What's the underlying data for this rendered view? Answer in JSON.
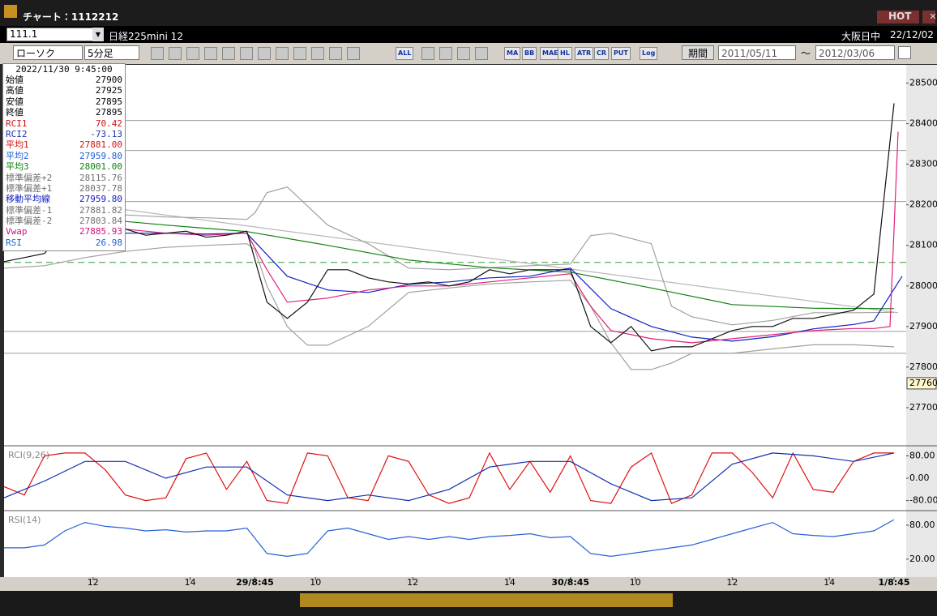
{
  "window": {
    "title": "チャート：1112212",
    "hot": "HOT"
  },
  "toolbar": {
    "code": "111.1",
    "name": "日経225mini 12",
    "market": "大阪日中",
    "date": "22/12/02",
    "style": "ローソク",
    "interval": "5分足",
    "period": "期間",
    "from": "2011/05/11",
    "tilde": "～",
    "to": "2012/03/06",
    "buttons": [
      "ALL",
      "MA",
      "BB",
      "MAE",
      "HL",
      "ATR",
      "CR",
      "PUT",
      "Log"
    ]
  },
  "info_panel": {
    "datetime": "2022/11/30 9:45:00",
    "rows": [
      {
        "label": "始値",
        "value": "27900",
        "color": "#000000"
      },
      {
        "label": "高値",
        "value": "27925",
        "color": "#000000"
      },
      {
        "label": "安値",
        "value": "27895",
        "color": "#000000"
      },
      {
        "label": "終値",
        "value": "27895",
        "color": "#000000"
      },
      {
        "label": "RCI1",
        "value": "70.42",
        "color": "#d01010"
      },
      {
        "label": "RCI2",
        "value": "-73.13",
        "color": "#2030b0"
      },
      {
        "label": "平均1",
        "value": "27881.00",
        "color": "#d01010"
      },
      {
        "label": "平均2",
        "value": "27959.80",
        "color": "#2060d0"
      },
      {
        "label": "平均3",
        "value": "28001.00",
        "color": "#108010"
      },
      {
        "label": "標準偏差+2",
        "value": "28115.76",
        "color": "#707070"
      },
      {
        "label": "標準偏差+1",
        "value": "28037.78",
        "color": "#707070"
      },
      {
        "label": "移動平均線",
        "value": "27959.80",
        "color": "#1020c0"
      },
      {
        "label": "標準偏差-1",
        "value": "27881.82",
        "color": "#707070"
      },
      {
        "label": "標準偏差-2",
        "value": "27803.84",
        "color": "#707070"
      },
      {
        "label": "Vwap",
        "value": "27885.93",
        "color": "#d01080"
      },
      {
        "label": "RSI",
        "value": "26.98",
        "color": "#2060d0"
      }
    ]
  },
  "chart_data": [
    {
      "type": "line",
      "xlim": [
        0,
        223
      ],
      "ylim": [
        27610,
        28535
      ],
      "yticks": [
        27700,
        27800,
        27900,
        28000,
        28100,
        28200,
        28300,
        28400,
        28500
      ],
      "xticks": [
        {
          "value": 22,
          "label": "12"
        },
        {
          "value": 46,
          "label": "14"
        },
        {
          "value": 62,
          "label": "29/8:45"
        },
        {
          "value": 77,
          "label": "10"
        },
        {
          "value": 101,
          "label": "12"
        },
        {
          "value": 125,
          "label": "14"
        },
        {
          "value": 140,
          "label": "30/8:45"
        },
        {
          "value": 156,
          "label": "10"
        },
        {
          "value": 180,
          "label": "12"
        },
        {
          "value": 204,
          "label": "14"
        },
        {
          "value": 220,
          "label": "1/8:45"
        }
      ],
      "last_price": 27760,
      "hlines": [
        28408,
        28334,
        28208,
        27888,
        27834
      ],
      "hline_color": "#9a9a9a",
      "dashed_line": 28058,
      "dashed_color": "#30a030",
      "trendline": {
        "x": [
          0,
          221
        ],
        "values": [
          28228,
          27934
        ],
        "color": "#b8b8b8"
      },
      "series": [
        {
          "color": "#a0a0a0",
          "x": [
            0,
            10,
            20,
            30,
            40,
            50,
            60,
            62,
            65,
            70,
            80,
            90,
            100,
            110,
            120,
            130,
            140,
            145,
            150,
            160,
            165,
            170,
            180,
            190,
            200,
            210,
            220
          ],
          "values": [
            28194,
            28190,
            28180,
            28175,
            28170,
            28168,
            28164,
            28180,
            28230,
            28244,
            28150,
            28104,
            28044,
            28040,
            28045,
            28050,
            28054,
            28124,
            28130,
            28104,
            27950,
            27924,
            27904,
            27915,
            27934,
            27934,
            27935
          ]
        },
        {
          "color": "#a0a0a0",
          "x": [
            0,
            10,
            20,
            30,
            40,
            50,
            60,
            62,
            65,
            70,
            75,
            80,
            90,
            100,
            110,
            120,
            130,
            140,
            145,
            150,
            155,
            160,
            165,
            170,
            180,
            190,
            200,
            210,
            220
          ],
          "values": [
            28044,
            28050,
            28070,
            28085,
            28095,
            28100,
            28104,
            28090,
            28000,
            27900,
            27854,
            27854,
            27900,
            27984,
            27995,
            28005,
            28010,
            28014,
            27950,
            27860,
            27794,
            27794,
            27810,
            27834,
            27834,
            27845,
            27855,
            27855,
            27850
          ]
        },
        {
          "color": "#108010",
          "x": [
            0,
            20,
            40,
            60,
            80,
            100,
            120,
            140,
            160,
            180,
            200,
            220
          ],
          "values": [
            28188,
            28168,
            28150,
            28134,
            28100,
            28064,
            28045,
            28034,
            27995,
            27954,
            27945,
            27944
          ]
        },
        {
          "color": "#1020c0",
          "x": [
            0,
            10,
            20,
            30,
            40,
            50,
            60,
            70,
            80,
            90,
            100,
            110,
            120,
            130,
            140,
            150,
            160,
            170,
            180,
            190,
            200,
            210,
            215,
            222
          ],
          "values": [
            28090,
            28105,
            28124,
            28130,
            28130,
            28128,
            28130,
            28024,
            27990,
            27984,
            28004,
            28010,
            28020,
            28024,
            28044,
            27944,
            27900,
            27874,
            27864,
            27875,
            27894,
            27905,
            27914,
            28024
          ]
        },
        {
          "color": "#e0207a",
          "x": [
            0,
            10,
            20,
            30,
            40,
            50,
            60,
            65,
            70,
            80,
            90,
            100,
            110,
            120,
            130,
            140,
            145,
            150,
            160,
            170,
            180,
            190,
            200,
            210,
            215,
            219,
            221
          ],
          "values": [
            28110,
            28120,
            28140,
            28140,
            28130,
            28125,
            28130,
            28040,
            27960,
            27970,
            27990,
            28000,
            28000,
            28010,
            28020,
            28030,
            27950,
            27890,
            27870,
            27860,
            27870,
            27880,
            27890,
            27895,
            27895,
            27900,
            28380
          ]
        },
        {
          "color": "#101010",
          "x": [
            0,
            5,
            10,
            15,
            20,
            25,
            30,
            35,
            40,
            45,
            50,
            55,
            60,
            65,
            70,
            75,
            80,
            85,
            90,
            95,
            100,
            105,
            110,
            115,
            120,
            125,
            130,
            135,
            140,
            145,
            150,
            155,
            160,
            165,
            170,
            175,
            180,
            185,
            190,
            195,
            200,
            205,
            210,
            215,
            220
          ],
          "values": [
            28060,
            28070,
            28080,
            28140,
            28150,
            28150,
            28140,
            28125,
            28130,
            28135,
            28120,
            28125,
            28135,
            27960,
            27920,
            27960,
            28040,
            28040,
            28020,
            28010,
            28005,
            28010,
            28000,
            28010,
            28040,
            28030,
            28040,
            28040,
            28040,
            27900,
            27860,
            27900,
            27840,
            27850,
            27850,
            27870,
            27890,
            27900,
            27900,
            27920,
            27920,
            27930,
            27940,
            27980,
            28450
          ]
        }
      ]
    },
    {
      "type": "line",
      "title": "RCI(9,26)",
      "xlim": [
        0,
        223
      ],
      "ylim": [
        -110,
        110
      ],
      "yticks": [
        {
          "value": 80,
          "label": "80.00"
        },
        {
          "value": 0,
          "label": "0.00"
        },
        {
          "value": -80,
          "label": "-80.00"
        }
      ],
      "series": [
        {
          "color": "#e01010",
          "x": [
            0,
            5,
            10,
            15,
            20,
            25,
            30,
            35,
            40,
            45,
            50,
            55,
            60,
            65,
            70,
            75,
            80,
            85,
            90,
            95,
            100,
            105,
            110,
            115,
            120,
            125,
            130,
            135,
            140,
            145,
            150,
            155,
            160,
            165,
            170,
            175,
            180,
            185,
            190,
            195,
            200,
            205,
            210,
            215,
            220
          ],
          "values": [
            -30,
            -60,
            80,
            90,
            90,
            30,
            -60,
            -80,
            -70,
            70,
            90,
            -40,
            60,
            -80,
            -90,
            90,
            80,
            -70,
            -80,
            80,
            60,
            -60,
            -90,
            -70,
            90,
            -40,
            60,
            -50,
            80,
            -80,
            -90,
            40,
            90,
            -90,
            -60,
            90,
            90,
            20,
            -70,
            90,
            -40,
            -50,
            60,
            90,
            90
          ]
        },
        {
          "color": "#1030b0",
          "x": [
            0,
            10,
            20,
            30,
            40,
            50,
            60,
            70,
            80,
            90,
            100,
            110,
            120,
            130,
            140,
            150,
            160,
            170,
            180,
            190,
            200,
            210,
            220
          ],
          "values": [
            -70,
            -10,
            60,
            60,
            0,
            40,
            40,
            -60,
            -80,
            -60,
            -80,
            -40,
            40,
            60,
            60,
            -20,
            -80,
            -70,
            50,
            90,
            80,
            60,
            90
          ]
        }
      ]
    },
    {
      "type": "line",
      "title": "RSI(14)",
      "xlim": [
        0,
        223
      ],
      "ylim": [
        -6,
        103
      ],
      "yticks": [
        {
          "value": 80,
          "label": "80.00"
        },
        {
          "value": 20,
          "label": "20.00"
        }
      ],
      "series": [
        {
          "color": "#2a60d8",
          "x": [
            0,
            5,
            10,
            15,
            20,
            25,
            30,
            35,
            40,
            45,
            50,
            55,
            60,
            65,
            70,
            75,
            80,
            85,
            90,
            95,
            100,
            105,
            110,
            115,
            120,
            125,
            130,
            135,
            140,
            145,
            150,
            155,
            160,
            165,
            170,
            175,
            180,
            185,
            190,
            195,
            200,
            205,
            210,
            215,
            220
          ],
          "values": [
            40,
            40,
            45,
            70,
            85,
            78,
            75,
            70,
            72,
            68,
            70,
            70,
            75,
            30,
            25,
            30,
            70,
            75,
            65,
            55,
            60,
            55,
            60,
            55,
            60,
            62,
            65,
            58,
            60,
            30,
            25,
            30,
            35,
            40,
            45,
            55,
            65,
            75,
            85,
            65,
            62,
            60,
            65,
            70,
            90
          ]
        }
      ]
    }
  ]
}
